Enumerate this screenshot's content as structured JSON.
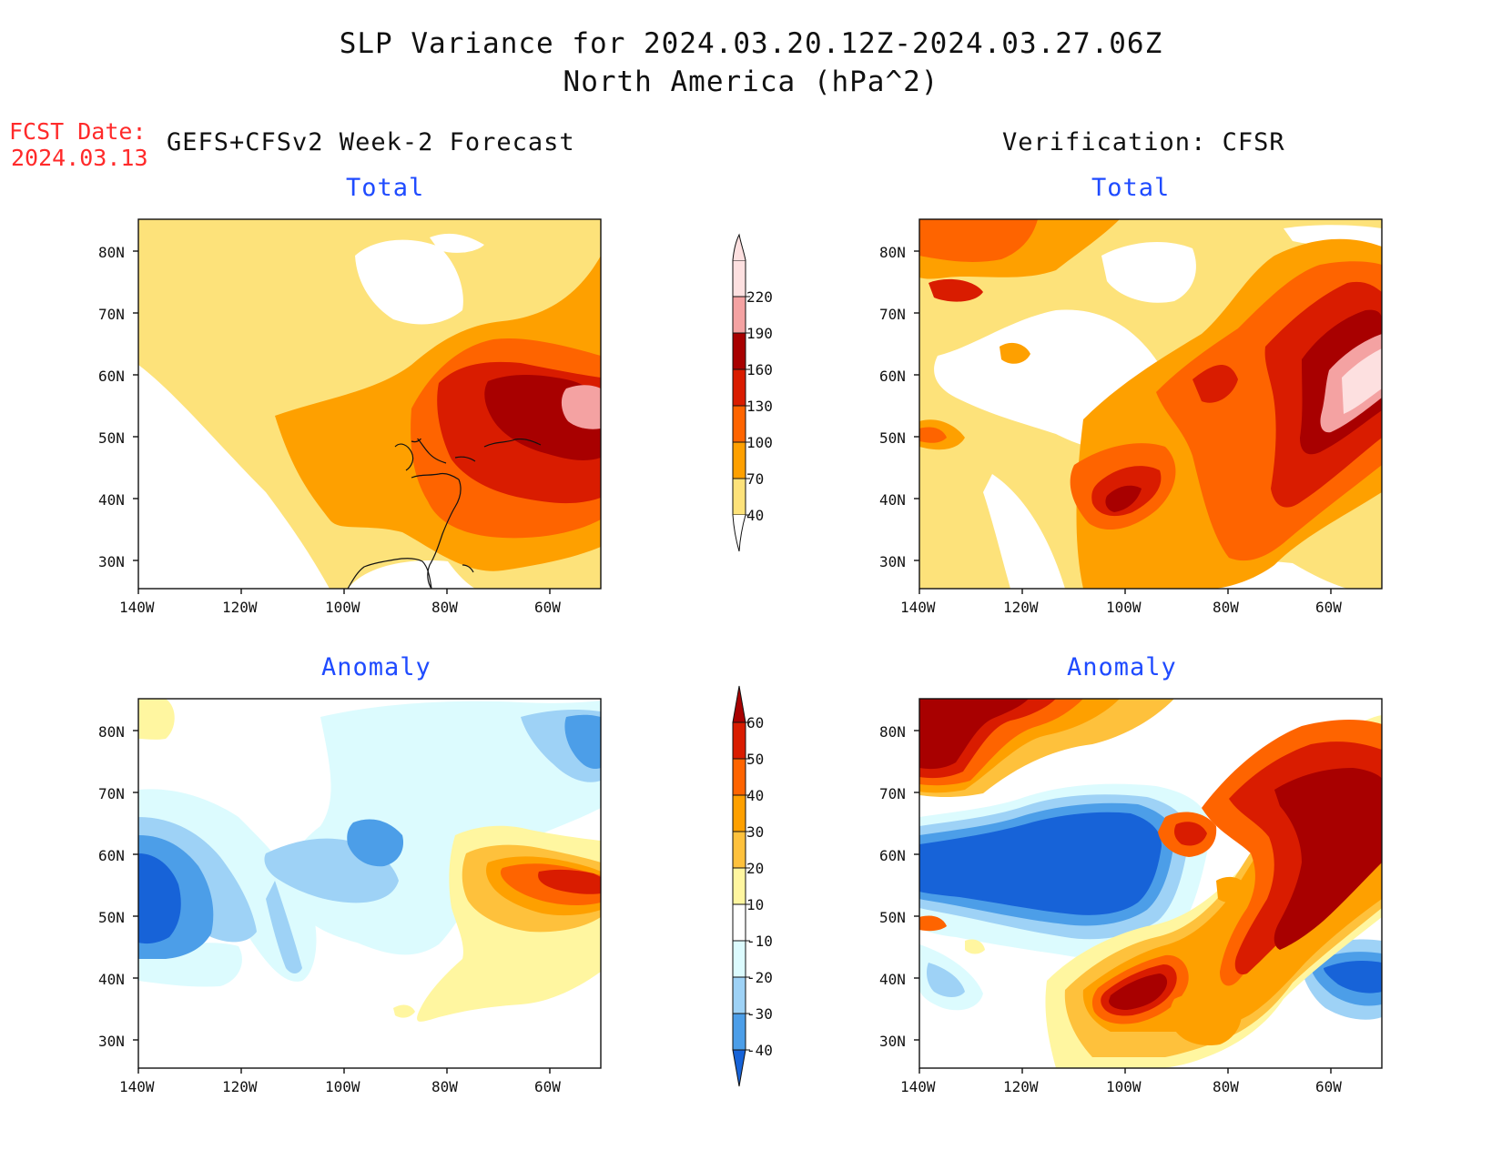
{
  "title": {
    "line1": "SLP Variance for 2024.03.20.12Z-2024.03.27.06Z",
    "line2": "North America (hPa^2)"
  },
  "fcst": {
    "label": "FCST Date:",
    "date": "2024.03.13"
  },
  "columns": {
    "left": "GEFS+CFSv2 Week-2 Forecast",
    "right": "Verification: CFSR"
  },
  "panels": {
    "top_left_title": "Total",
    "top_right_title": "Total",
    "bottom_left_title": "Anomaly",
    "bottom_right_title": "Anomaly"
  },
  "axes": {
    "lat_labels": [
      "80N",
      "70N",
      "60N",
      "50N",
      "40N",
      "30N"
    ],
    "lon_labels": [
      "140W",
      "120W",
      "100W",
      "80W",
      "60W"
    ]
  },
  "colorbars": {
    "total": {
      "levels": [
        "220",
        "190",
        "160",
        "130",
        "100",
        "70",
        "40"
      ],
      "colors": [
        "#fde0e0",
        "#f4a2a2",
        "#a80000",
        "#d91c00",
        "#fe6400",
        "#fea000",
        "#fde27a",
        "#ffffff"
      ]
    },
    "anomaly": {
      "levels": [
        "60",
        "50",
        "40",
        "30",
        "20",
        "10",
        "-10",
        "-20",
        "-30",
        "-40"
      ],
      "colors": [
        "#a80000",
        "#d91c00",
        "#fe6400",
        "#fea000",
        "#fec13c",
        "#fff6a0",
        "#ffffff",
        "#dcfbfe",
        "#9ed2f6",
        "#4c9ee8",
        "#1763d8"
      ]
    }
  },
  "colors": {
    "title_text": "#111111",
    "fcst_text": "#ff2a2a",
    "panel_title": "#1f4bff"
  }
}
